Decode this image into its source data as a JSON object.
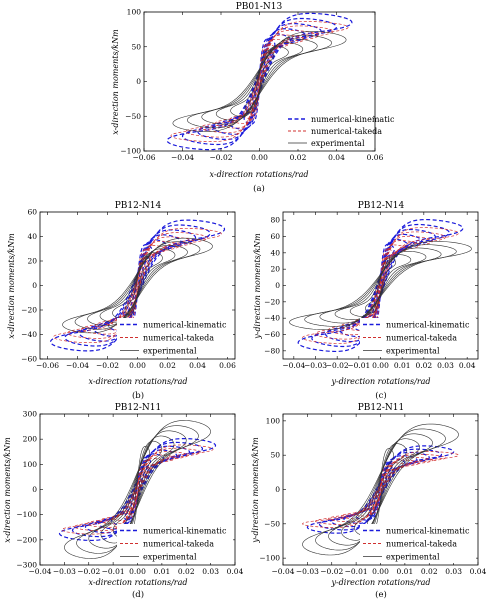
{
  "chart_data": [
    {
      "type": "line",
      "panel": "a",
      "caption": "(a)",
      "title": "PB01-N13",
      "xlabel": "x-direction rotations/rad",
      "ylabel": "x-direction moments/kNm",
      "xlim": [
        -0.06,
        0.06
      ],
      "ylim": [
        -100,
        100
      ],
      "xticks": [
        -0.06,
        -0.04,
        -0.02,
        0,
        0.02,
        0.04,
        0.06
      ],
      "yticks": [
        -100,
        -50,
        0,
        50,
        100
      ],
      "xtick_labels": [
        "−0.06",
        "−0.04",
        "−0.02",
        "0.00",
        "0.02",
        "0.04",
        "0.06"
      ],
      "ytick_labels": [
        "−100",
        "−50",
        "0",
        "50",
        "100"
      ],
      "legend_position": "bottom-right",
      "series": [
        {
          "name": "numerical-kinematic",
          "color": "#1a1adb",
          "style": "dash-thick",
          "xmax": 0.048,
          "ymax": 85,
          "k": 4.5,
          "h": 0.2
        },
        {
          "name": "numerical-takeda",
          "color": "#d0302f",
          "style": "dash-thin",
          "xmax": 0.046,
          "ymax": 78,
          "k": 5.0,
          "h": 0.14
        },
        {
          "name": "experimental",
          "color": "#333333",
          "style": "solid",
          "xmax": 0.045,
          "ymax": 60,
          "k": 3.2,
          "h": 0.3
        }
      ]
    },
    {
      "type": "line",
      "panel": "b",
      "caption": "(b)",
      "title": "PB12-N14",
      "xlabel": "x-direction rotations/rad",
      "ylabel": "x-direction moments/kNm",
      "xlim": [
        -0.065,
        0.065
      ],
      "ylim": [
        -60,
        60
      ],
      "xticks": [
        -0.06,
        -0.04,
        -0.02,
        0,
        0.02,
        0.04,
        0.06
      ],
      "yticks": [
        -60,
        -40,
        -20,
        0,
        20,
        40,
        60
      ],
      "xtick_labels": [
        "−0.06",
        "−0.04",
        "−0.02",
        "0.00",
        "0.02",
        "0.04",
        "0.06"
      ],
      "ytick_labels": [
        "−60",
        "−40",
        "−20",
        "0",
        "20",
        "40",
        "60"
      ],
      "legend_position": "bottom-right",
      "series": [
        {
          "name": "numerical-kinematic",
          "color": "#1a1adb",
          "style": "dash-thick",
          "xmax": 0.058,
          "ymax": 46,
          "k": 4.0,
          "h": 0.22
        },
        {
          "name": "numerical-takeda",
          "color": "#d0302f",
          "style": "dash-thin",
          "xmax": 0.056,
          "ymax": 42,
          "k": 4.5,
          "h": 0.15
        },
        {
          "name": "experimental",
          "color": "#333333",
          "style": "solid",
          "xmax": 0.05,
          "ymax": 32,
          "k": 3.0,
          "h": 0.32
        }
      ]
    },
    {
      "type": "line",
      "panel": "c",
      "caption": "(c)",
      "title": "PB12-N14",
      "xlabel": "y-direction rotations/rad",
      "ylabel": "y-direction moments/kNm",
      "xlim": [
        -0.045,
        0.045
      ],
      "ylim": [
        -90,
        90
      ],
      "xticks": [
        -0.04,
        -0.03,
        -0.02,
        -0.01,
        0,
        0.01,
        0.02,
        0.03,
        0.04
      ],
      "yticks": [
        -80,
        -60,
        -40,
        -20,
        0,
        20,
        40,
        60,
        80
      ],
      "xtick_labels": [
        "−0.04",
        "−0.03",
        "−0.02",
        "−0.01",
        "0.00",
        "0.01",
        "0.02",
        "0.03",
        "0.04"
      ],
      "ytick_labels": [
        "−80",
        "−60",
        "−40",
        "−20",
        "0",
        "20",
        "40",
        "60",
        "80"
      ],
      "legend_position": "bottom-right",
      "series": [
        {
          "name": "numerical-kinematic",
          "color": "#1a1adb",
          "style": "dash-thick",
          "xmax": 0.038,
          "ymax": 70,
          "k": 4.5,
          "h": 0.2
        },
        {
          "name": "numerical-takeda",
          "color": "#d0302f",
          "style": "dash-thin",
          "xmax": 0.036,
          "ymax": 64,
          "k": 5.0,
          "h": 0.14
        },
        {
          "name": "experimental",
          "color": "#333333",
          "style": "solid",
          "xmax": 0.042,
          "ymax": 45,
          "k": 3.2,
          "h": 0.3
        }
      ]
    },
    {
      "type": "line",
      "panel": "d",
      "caption": "(d)",
      "title": "PB12-N11",
      "xlabel": "x-direction rotations/rad",
      "ylabel": "x-direction moments/kNm",
      "xlim": [
        -0.04,
        0.04
      ],
      "ylim": [
        -300,
        300
      ],
      "xticks": [
        -0.04,
        -0.03,
        -0.02,
        -0.01,
        0,
        0.01,
        0.02,
        0.03,
        0.04
      ],
      "yticks": [
        -300,
        -200,
        -100,
        0,
        100,
        200,
        300
      ],
      "xtick_labels": [
        "−0.04",
        "−0.03",
        "−0.02",
        "−0.01",
        "0.00",
        "0.01",
        "0.02",
        "0.03",
        "0.04"
      ],
      "ytick_labels": [
        "−300",
        "−200",
        "−100",
        "0",
        "100",
        "200",
        "300"
      ],
      "legend_position": "bottom-right",
      "series": [
        {
          "name": "numerical-kinematic",
          "color": "#1a1adb",
          "style": "dash-thick",
          "xmax": 0.032,
          "ymax": 175,
          "k": 3.8,
          "h": 0.22
        },
        {
          "name": "numerical-takeda",
          "color": "#d0302f",
          "style": "dash-thin",
          "xmax": 0.031,
          "ymax": 160,
          "k": 4.2,
          "h": 0.15
        },
        {
          "name": "experimental",
          "color": "#333333",
          "style": "solid",
          "xmax": 0.03,
          "ymax": 230,
          "k": 3.0,
          "h": 0.3
        }
      ]
    },
    {
      "type": "line",
      "panel": "e",
      "caption": "(e)",
      "title": "PB12-N11",
      "xlabel": "y-direction rotations/rad",
      "ylabel": "y-direction moments/kNm",
      "xlim": [
        -0.04,
        0.04
      ],
      "ylim": [
        -110,
        110
      ],
      "xticks": [
        -0.04,
        -0.03,
        -0.02,
        -0.01,
        0,
        0.01,
        0.02,
        0.03,
        0.04
      ],
      "yticks": [
        -100,
        -50,
        0,
        50,
        100
      ],
      "xtick_labels": [
        "−0.04",
        "−0.03",
        "−0.02",
        "−0.01",
        "0.00",
        "0.01",
        "0.02",
        "0.03",
        "0.04"
      ],
      "ytick_labels": [
        "−100",
        "−50",
        "0",
        "50",
        "100"
      ],
      "legend_position": "bottom-right",
      "series": [
        {
          "name": "numerical-kinematic",
          "color": "#1a1adb",
          "style": "dash-thick",
          "xmax": 0.03,
          "ymax": 55,
          "k": 3.8,
          "h": 0.22
        },
        {
          "name": "numerical-takeda",
          "color": "#d0302f",
          "style": "dash-thin",
          "xmax": 0.032,
          "ymax": 50,
          "k": 4.2,
          "h": 0.15
        },
        {
          "name": "experimental",
          "color": "#333333",
          "style": "solid",
          "xmax": 0.032,
          "ymax": 80,
          "k": 3.0,
          "h": 0.3
        }
      ]
    }
  ]
}
